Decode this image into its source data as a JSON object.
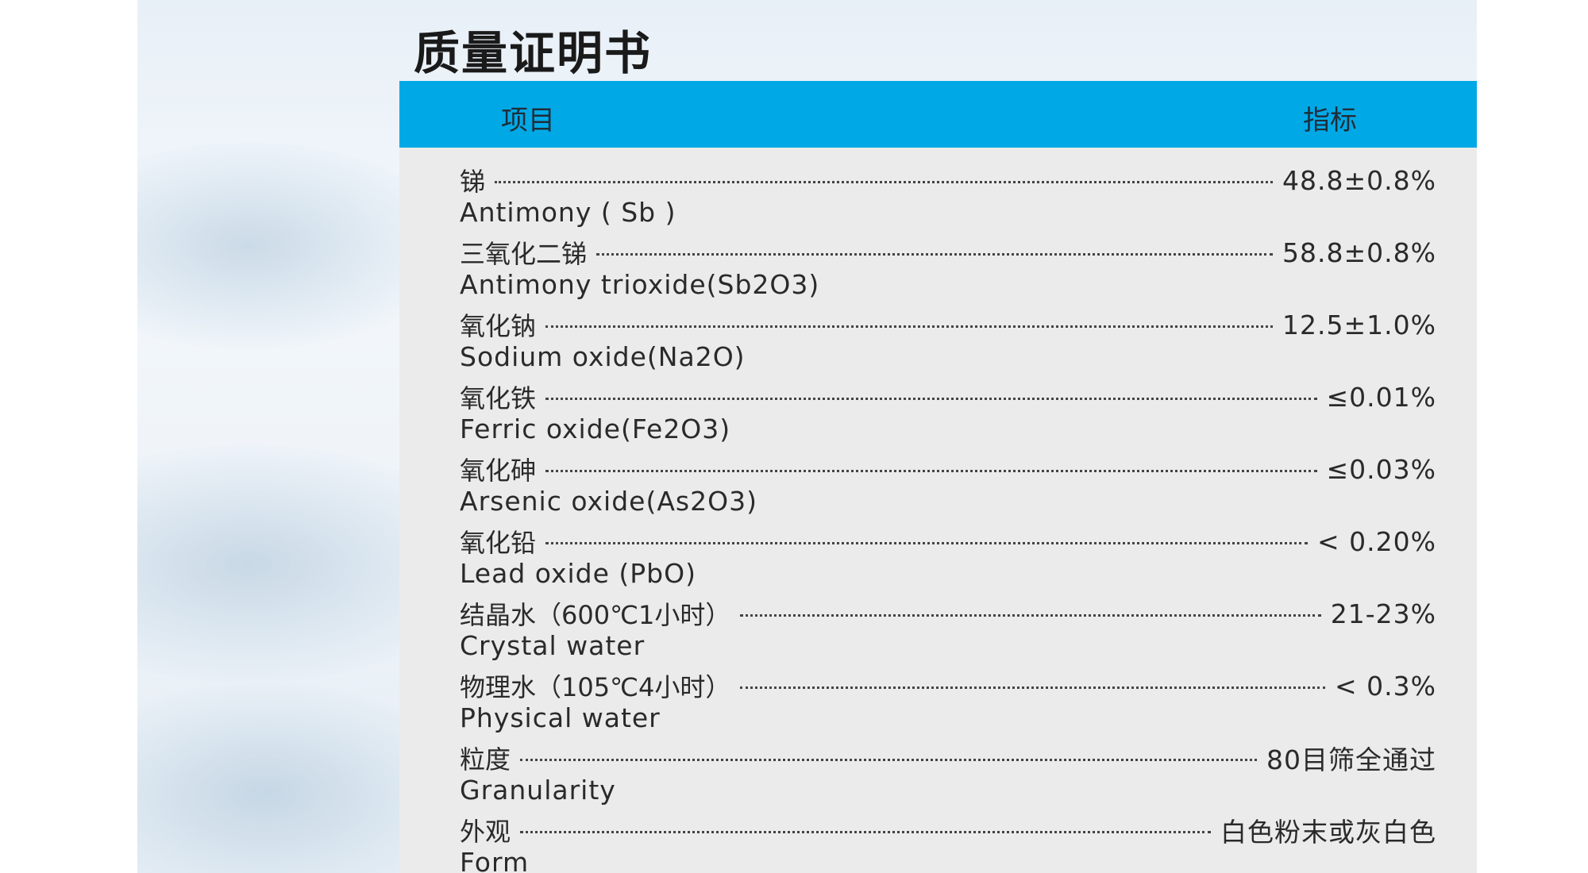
{
  "document": {
    "title": "质量证明书",
    "table": {
      "header": {
        "item": "项目",
        "spec": "指标"
      },
      "rows": [
        {
          "cn": "锑",
          "en": "Antimony ( Sb )",
          "value": "48.8±0.8%"
        },
        {
          "cn": "三氧化二锑",
          "en": "Antimony trioxide(Sb2O3)",
          "value": "58.8±0.8%"
        },
        {
          "cn": "氧化钠",
          "en": "Sodium oxide(Na2O)",
          "value": "12.5±1.0%"
        },
        {
          "cn": "氧化铁",
          "en": "Ferric oxide(Fe2O3)",
          "value": "≤0.01%"
        },
        {
          "cn": "氧化砷",
          "en": "Arsenic oxide(As2O3)",
          "value": "≤0.03%"
        },
        {
          "cn": "氧化铅",
          "en": "Lead oxide (PbO)",
          "value": "< 0.20%"
        },
        {
          "cn": "结晶水（600℃1小时）",
          "en": "Crystal water",
          "value": "21-23%"
        },
        {
          "cn": "物理水（105℃4小时）",
          "en": "Physical water",
          "value": "< 0.3%"
        },
        {
          "cn": "粒度",
          "en": "Granularity",
          "value": "80目筛全通过"
        },
        {
          "cn": "外观",
          "en": "Form",
          "value": "白色粉末或灰白色"
        }
      ]
    }
  }
}
